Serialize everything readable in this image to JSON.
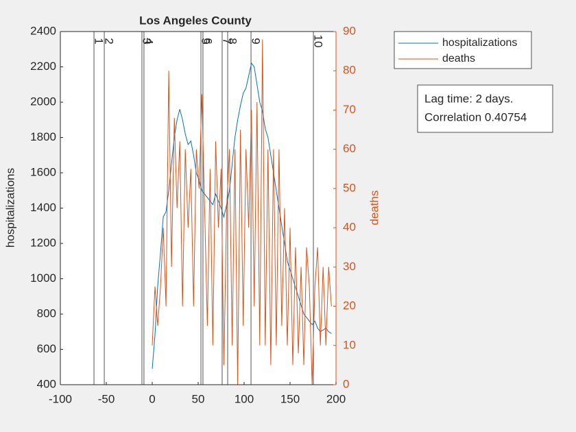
{
  "chart_data": {
    "type": "line",
    "title": "Los Angeles County",
    "xlabel": null,
    "ylabel": "hospitalizations",
    "y2label": "deaths",
    "x": [
      0,
      3,
      6,
      9,
      12,
      15,
      18,
      21,
      24,
      27,
      30,
      33,
      36,
      39,
      42,
      45,
      48,
      51,
      54,
      57,
      60,
      63,
      66,
      69,
      72,
      75,
      78,
      81,
      84,
      87,
      90,
      93,
      96,
      99,
      102,
      105,
      108,
      111,
      114,
      117,
      120,
      123,
      126,
      129,
      132,
      135,
      138,
      141,
      144,
      147,
      150,
      153,
      156,
      159,
      162,
      165,
      168,
      171,
      174,
      177,
      180,
      183,
      186,
      189,
      192,
      195
    ],
    "series": [
      {
        "name": "hospitalizations",
        "color": "#0072BD",
        "axis": "y",
        "values": [
          490,
          680,
          960,
          1150,
          1350,
          1380,
          1500,
          1650,
          1800,
          1900,
          1960,
          1900,
          1820,
          1760,
          1780,
          1700,
          1600,
          1560,
          1500,
          1480,
          1460,
          1440,
          1420,
          1480,
          1440,
          1400,
          1350,
          1420,
          1500,
          1650,
          1800,
          1900,
          1980,
          2050,
          2080,
          2150,
          2220,
          2200,
          2100,
          2000,
          1950,
          1850,
          1800,
          1700,
          1600,
          1500,
          1400,
          1300,
          1200,
          1100,
          1050,
          1000,
          950,
          900,
          850,
          800,
          780,
          760,
          740,
          760,
          720,
          700,
          710,
          720,
          700,
          690
        ]
      },
      {
        "name": "deaths",
        "color": "#D95319",
        "axis": "y2",
        "values": [
          10,
          25,
          15,
          25,
          40,
          20,
          80,
          30,
          68,
          45,
          62,
          20,
          60,
          40,
          55,
          20,
          60,
          50,
          74,
          45,
          15,
          55,
          10,
          62,
          40,
          55,
          5,
          45,
          60,
          10,
          60,
          0,
          65,
          15,
          60,
          40,
          70,
          20,
          72,
          10,
          88,
          10,
          60,
          5,
          60,
          10,
          60,
          15,
          45,
          10,
          40,
          5,
          35,
          8,
          30,
          5,
          35,
          25,
          0,
          25,
          35,
          10,
          30,
          10,
          30,
          20
        ]
      }
    ],
    "xlim": [
      -100,
      200
    ],
    "xticks": [
      -100,
      -50,
      0,
      50,
      100,
      150,
      200
    ],
    "ylim": [
      400,
      2400
    ],
    "yticks": [
      400,
      600,
      800,
      1000,
      1200,
      1400,
      1600,
      1800,
      2000,
      2200,
      2400
    ],
    "y2lim": [
      0,
      90
    ],
    "y2ticks": [
      0,
      10,
      20,
      30,
      40,
      50,
      60,
      70,
      80,
      90
    ],
    "vlines": [
      {
        "x": -63.4,
        "label": "1"
      },
      {
        "x": -52.2,
        "label": "2"
      },
      {
        "x": -11.2,
        "label": "3"
      },
      {
        "x": -9,
        "label": "4"
      },
      {
        "x": 53,
        "label": "5"
      },
      {
        "x": 55.2,
        "label": "6"
      },
      {
        "x": 76.1,
        "label": "7"
      },
      {
        "x": 82.1,
        "label": "8"
      },
      {
        "x": 107.5,
        "label": "9"
      },
      {
        "x": 175.4,
        "label": "10"
      }
    ],
    "annotation": [
      "Lag time: 2 days.",
      "Correlation 0.40754"
    ],
    "legend": "upper right outside",
    "grid": false
  }
}
